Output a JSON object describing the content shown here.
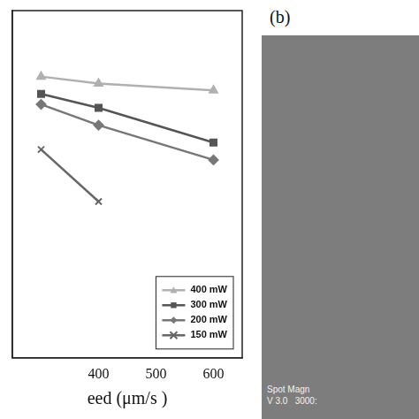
{
  "chart_data": {
    "type": "line",
    "x_label": "eed (μm/s )",
    "x": [
      300,
      400,
      600
    ],
    "series": [
      {
        "name": "400 mW",
        "color": "#b0b0b0",
        "marker": "triangle",
        "values": [
          81,
          79,
          77
        ]
      },
      {
        "name": "300 mW",
        "color": "#555555",
        "marker": "square",
        "values": [
          76,
          72,
          62
        ]
      },
      {
        "name": "200 mW",
        "color": "#777777",
        "marker": "diamond",
        "values": [
          73,
          67,
          57
        ]
      },
      {
        "name": "150 mW",
        "color": "#666666",
        "marker": "x",
        "values": [
          60,
          45,
          null
        ]
      }
    ],
    "xlim": [
      250,
      650
    ],
    "xticks": [
      400,
      500,
      600
    ],
    "ylim": [
      0,
      100
    ],
    "tick_labels": "x",
    "grid": false,
    "legend": "lower right"
  },
  "image_panel": {
    "label": "(b)",
    "texts": [
      "Spot Magn",
      "V 3.0   3000:"
    ]
  }
}
